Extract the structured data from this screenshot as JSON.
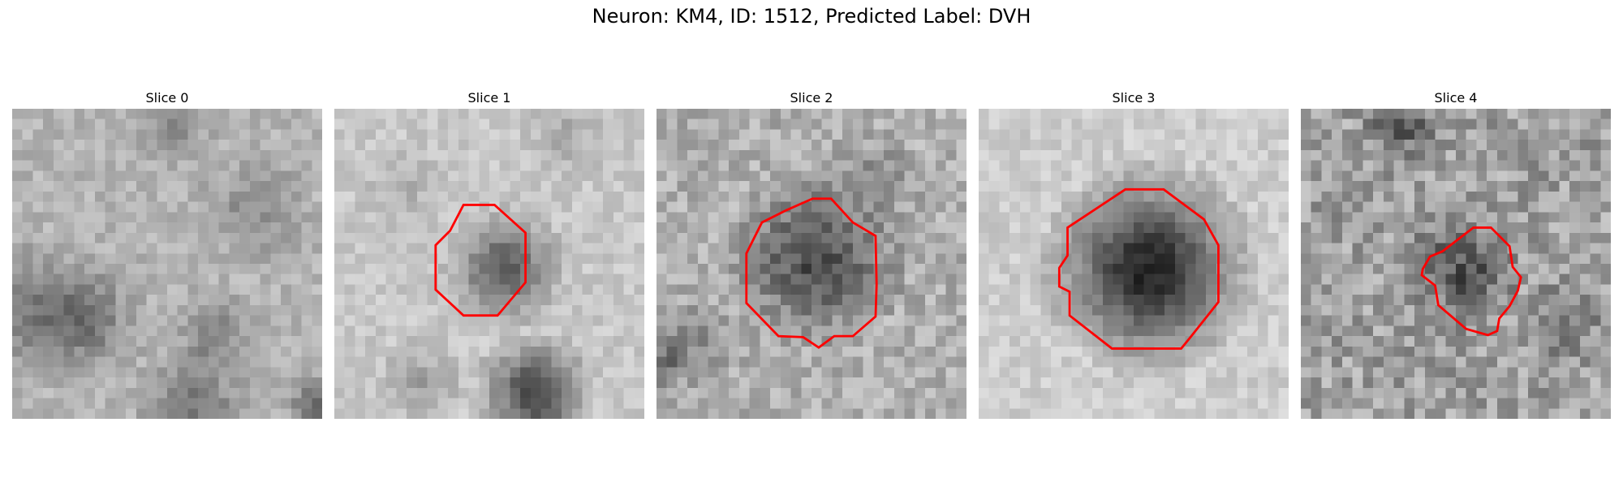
{
  "figure": {
    "title": "Neuron: KM4, ID: 1512, Predicted Label: DVH"
  },
  "contour_color": "#ff0000",
  "panels": [
    {
      "title": "Slice 0",
      "image": "noisy grayscale microscopy patch, no neuron outline",
      "has_contour": false
    },
    {
      "title": "Slice 1",
      "image": "grayscale patch with small dark neuron blob",
      "has_contour": true
    },
    {
      "title": "Slice 2",
      "image": "grayscale patch with dark neuron blob",
      "has_contour": true
    },
    {
      "title": "Slice 3",
      "image": "grayscale patch with large dark neuron blob",
      "has_contour": true
    },
    {
      "title": "Slice 4",
      "image": "noisy grayscale patch with small dark neuron blob",
      "has_contour": true
    }
  ]
}
